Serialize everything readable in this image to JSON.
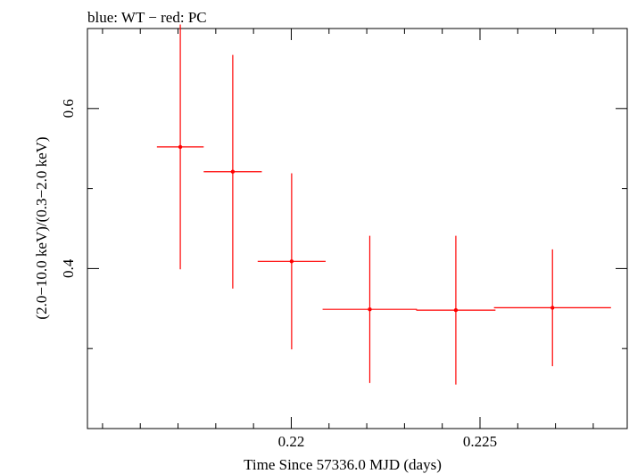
{
  "chart_data": {
    "type": "scatter",
    "title": "blue: WT − red: PC",
    "xlabel": "Time Since 57336.0 MJD (days)",
    "ylabel": "(2.0−10.0 keV)/(0.3−2.0 keV)",
    "xlim": [
      0.2146,
      0.2289
    ],
    "ylim": [
      0.2,
      0.7
    ],
    "x_ticks": [
      {
        "value": 0.22,
        "label": "0.22"
      },
      {
        "value": 0.225,
        "label": "0.225"
      }
    ],
    "x_minor_ticks": [
      0.215,
      0.216,
      0.217,
      0.218,
      0.219,
      0.221,
      0.222,
      0.223,
      0.224,
      0.226,
      0.227,
      0.228
    ],
    "y_ticks": [
      {
        "value": 0.4,
        "label": "0.4"
      },
      {
        "value": 0.6,
        "label": "0.6"
      }
    ],
    "y_minor_ticks": [
      0.3,
      0.5
    ],
    "grid": false,
    "series": [
      {
        "color": "#ff0000",
        "points": [
          {
            "x": 0.21706,
            "xerr_low": 0.00062,
            "xerr_high": 0.00062,
            "y": 0.552,
            "y_low": 0.399,
            "y_high": 0.705
          },
          {
            "x": 0.21845,
            "xerr_low": 0.00077,
            "xerr_high": 0.00077,
            "y": 0.521,
            "y_low": 0.375,
            "y_high": 0.667
          },
          {
            "x": 0.22001,
            "xerr_low": 0.0009,
            "xerr_high": 0.0009,
            "y": 0.409,
            "y_low": 0.299,
            "y_high": 0.519
          },
          {
            "x": 0.22208,
            "xerr_low": 0.00125,
            "xerr_high": 0.00125,
            "y": 0.349,
            "y_low": 0.257,
            "y_high": 0.441
          },
          {
            "x": 0.22436,
            "xerr_low": 0.00105,
            "xerr_high": 0.00105,
            "y": 0.348,
            "y_low": 0.255,
            "y_high": 0.441
          },
          {
            "x": 0.22692,
            "xerr_low": 0.00155,
            "xerr_high": 0.00155,
            "y": 0.351,
            "y_low": 0.278,
            "y_high": 0.424
          }
        ]
      }
    ]
  }
}
